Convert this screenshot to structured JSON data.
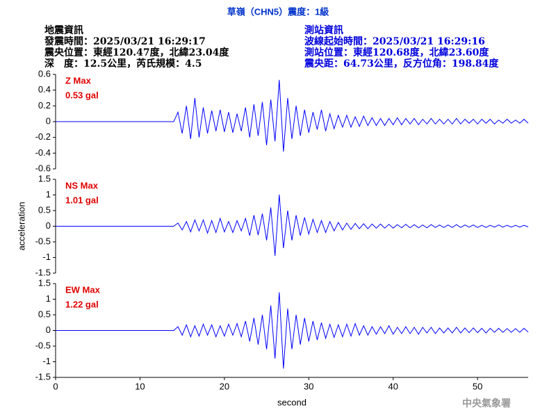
{
  "header": {
    "title": "草嶺（CHN5）震度：1級",
    "left": [
      "地震資訊",
      "發震時間：2025/03/21 16:29:17",
      "震央位置：東經120.47度，北緯23.04度",
      "深　度：12.5公里，芮氏規模：4.5"
    ],
    "right": [
      "測站資訊",
      "波線起始時間：2025/03/21 16:29:16",
      "測站位置：東經120.68度，北緯23.60度",
      "震央距：64.73公里，反方位角：198.84度"
    ]
  },
  "footer": "中央氣象署",
  "chart_data": [
    {
      "type": "line",
      "annotations": [
        "Z Max",
        "0.53 gal"
      ],
      "color": "#0000ff",
      "xlim": [
        0,
        56
      ],
      "ylim": [
        -0.6,
        0.6
      ],
      "yticks": [
        -0.6,
        -0.4,
        -0.2,
        0,
        0.2,
        0.4,
        0.6
      ],
      "x": [
        0,
        14,
        14.5,
        15,
        15.5,
        16,
        16.5,
        17,
        17.5,
        18,
        18.5,
        19,
        19.5,
        20,
        20.5,
        21,
        21.5,
        22,
        22.5,
        23,
        23.5,
        24,
        24.5,
        25,
        25.5,
        26,
        26.5,
        27,
        27.5,
        28,
        28.5,
        29,
        29.5,
        30,
        30.5,
        31,
        31.5,
        32,
        32.5,
        33,
        33.5,
        34,
        34.5,
        35,
        35.5,
        36,
        36.5,
        37,
        37.5,
        38,
        38.5,
        39,
        39.5,
        40,
        40.5,
        41,
        41.5,
        42,
        42.5,
        43,
        43.5,
        44,
        44.5,
        45,
        45.5,
        46,
        46.5,
        47,
        47.5,
        48,
        48.5,
        49,
        49.5,
        50,
        50.5,
        51,
        51.5,
        52,
        52.5,
        53,
        53.5,
        54,
        54.5,
        55,
        55.5,
        56
      ],
      "values": [
        0,
        0,
        0.12,
        -0.15,
        0.2,
        -0.22,
        0.3,
        -0.2,
        0.18,
        -0.15,
        0.14,
        -0.12,
        0.15,
        -0.13,
        0.12,
        -0.14,
        0.1,
        -0.12,
        0.18,
        -0.2,
        0.22,
        -0.18,
        0.25,
        -0.3,
        0.28,
        -0.25,
        0.53,
        -0.38,
        0.3,
        -0.22,
        0.2,
        -0.18,
        0.15,
        -0.14,
        0.12,
        -0.1,
        0.15,
        -0.12,
        0.1,
        -0.09,
        0.08,
        -0.07,
        0.08,
        -0.07,
        0.06,
        -0.06,
        0.07,
        -0.05,
        0.05,
        -0.05,
        0.04,
        -0.05,
        0.04,
        -0.04,
        0.05,
        -0.04,
        0.04,
        -0.03,
        0.04,
        -0.04,
        0.03,
        -0.03,
        0.04,
        -0.03,
        0.03,
        -0.03,
        0.03,
        -0.03,
        0.04,
        -0.03,
        0.03,
        -0.02,
        0.03,
        -0.03,
        0.03,
        -0.02,
        0.03,
        -0.03,
        0.02,
        -0.02,
        0.03,
        -0.02,
        0.02,
        -0.02,
        0.03,
        -0.02
      ]
    },
    {
      "type": "line",
      "annotations": [
        "NS Max",
        "1.01 gal"
      ],
      "color": "#0000ff",
      "ylabel": "acceleration",
      "xlim": [
        0,
        56
      ],
      "ylim": [
        -1.5,
        1.5
      ],
      "yticks": [
        -1.5,
        -1,
        -0.5,
        0,
        0.5,
        1,
        1.5
      ],
      "x": [
        0,
        14,
        14.5,
        15,
        15.5,
        16,
        16.5,
        17,
        17.5,
        18,
        18.5,
        19,
        19.5,
        20,
        20.5,
        21,
        21.5,
        22,
        22.5,
        23,
        23.5,
        24,
        24.5,
        25,
        25.5,
        26,
        26.5,
        27,
        27.5,
        28,
        28.5,
        29,
        29.5,
        30,
        30.5,
        31,
        31.5,
        32,
        32.5,
        33,
        33.5,
        34,
        34.5,
        35,
        35.5,
        36,
        36.5,
        37,
        37.5,
        38,
        38.5,
        39,
        39.5,
        40,
        40.5,
        41,
        41.5,
        42,
        42.5,
        43,
        43.5,
        44,
        44.5,
        45,
        45.5,
        46,
        46.5,
        47,
        47.5,
        48,
        48.5,
        49,
        49.5,
        50,
        50.5,
        51,
        51.5,
        52,
        52.5,
        53,
        53.5,
        54,
        54.5,
        55,
        55.5,
        56
      ],
      "values": [
        0,
        0,
        0.1,
        -0.12,
        0.15,
        -0.18,
        0.2,
        -0.15,
        0.2,
        -0.22,
        0.18,
        -0.2,
        0.25,
        -0.18,
        0.15,
        -0.2,
        0.18,
        -0.15,
        0.25,
        -0.3,
        0.35,
        -0.28,
        0.4,
        -0.45,
        0.6,
        -0.95,
        1.01,
        -0.7,
        0.5,
        -0.45,
        0.35,
        -0.3,
        0.28,
        -0.25,
        0.22,
        -0.2,
        0.18,
        -0.2,
        0.15,
        -0.15,
        0.12,
        -0.12,
        0.1,
        -0.1,
        0.09,
        -0.08,
        0.08,
        -0.08,
        0.07,
        -0.06,
        0.07,
        -0.06,
        0.06,
        -0.06,
        0.05,
        -0.05,
        0.06,
        -0.05,
        0.05,
        -0.05,
        0.04,
        -0.05,
        0.05,
        -0.04,
        0.04,
        -0.04,
        0.04,
        -0.04,
        0.05,
        -0.04,
        0.04,
        -0.03,
        0.04,
        -0.04,
        0.03,
        -0.04,
        0.03,
        -0.03,
        0.04,
        -0.03,
        0.03,
        -0.03,
        0.03,
        -0.03,
        0.03,
        -0.02
      ]
    },
    {
      "type": "line",
      "annotations": [
        "EW Max",
        "1.22 gal"
      ],
      "color": "#0000ff",
      "xlabel": "second",
      "xlim": [
        0,
        56
      ],
      "xticks": [
        0,
        10,
        20,
        30,
        40,
        50
      ],
      "ylim": [
        -1.5,
        1.5
      ],
      "yticks": [
        -1.5,
        -1,
        -0.5,
        0,
        0.5,
        1,
        1.5
      ],
      "x": [
        0,
        14,
        14.5,
        15,
        15.5,
        16,
        16.5,
        17,
        17.5,
        18,
        18.5,
        19,
        19.5,
        20,
        20.5,
        21,
        21.5,
        22,
        22.5,
        23,
        23.5,
        24,
        24.5,
        25,
        25.5,
        26,
        26.5,
        27,
        27.5,
        28,
        28.5,
        29,
        29.5,
        30,
        30.5,
        31,
        31.5,
        32,
        32.5,
        33,
        33.5,
        34,
        34.5,
        35,
        35.5,
        36,
        36.5,
        37,
        37.5,
        38,
        38.5,
        39,
        39.5,
        40,
        40.5,
        41,
        41.5,
        42,
        42.5,
        43,
        43.5,
        44,
        44.5,
        45,
        45.5,
        46,
        46.5,
        47,
        47.5,
        48,
        48.5,
        49,
        49.5,
        50,
        50.5,
        51,
        51.5,
        52,
        52.5,
        53,
        53.5,
        54,
        54.5,
        55,
        55.5,
        56
      ],
      "values": [
        0,
        0,
        0.12,
        -0.15,
        0.18,
        -0.2,
        0.15,
        -0.18,
        0.2,
        -0.15,
        0.18,
        -0.2,
        0.15,
        -0.18,
        0.2,
        -0.15,
        0.22,
        -0.2,
        0.3,
        -0.35,
        0.4,
        -0.45,
        0.5,
        -0.6,
        0.8,
        -0.9,
        1.22,
        -1.22,
        0.7,
        -0.6,
        0.5,
        -0.45,
        0.4,
        -0.35,
        0.3,
        -0.3,
        0.25,
        -0.25,
        0.2,
        -0.22,
        0.18,
        -0.2,
        0.2,
        -0.18,
        0.22,
        -0.15,
        0.15,
        -0.15,
        0.12,
        -0.12,
        0.12,
        -0.1,
        0.15,
        -0.12,
        0.1,
        -0.1,
        0.12,
        -0.1,
        0.1,
        -0.12,
        0.1,
        -0.08,
        0.1,
        -0.1,
        0.08,
        -0.08,
        0.08,
        -0.08,
        0.1,
        -0.08,
        0.08,
        -0.07,
        0.08,
        -0.07,
        0.07,
        -0.08,
        0.07,
        -0.06,
        0.07,
        -0.06,
        0.06,
        -0.06,
        0.06,
        -0.06,
        0.07,
        -0.05
      ]
    }
  ]
}
